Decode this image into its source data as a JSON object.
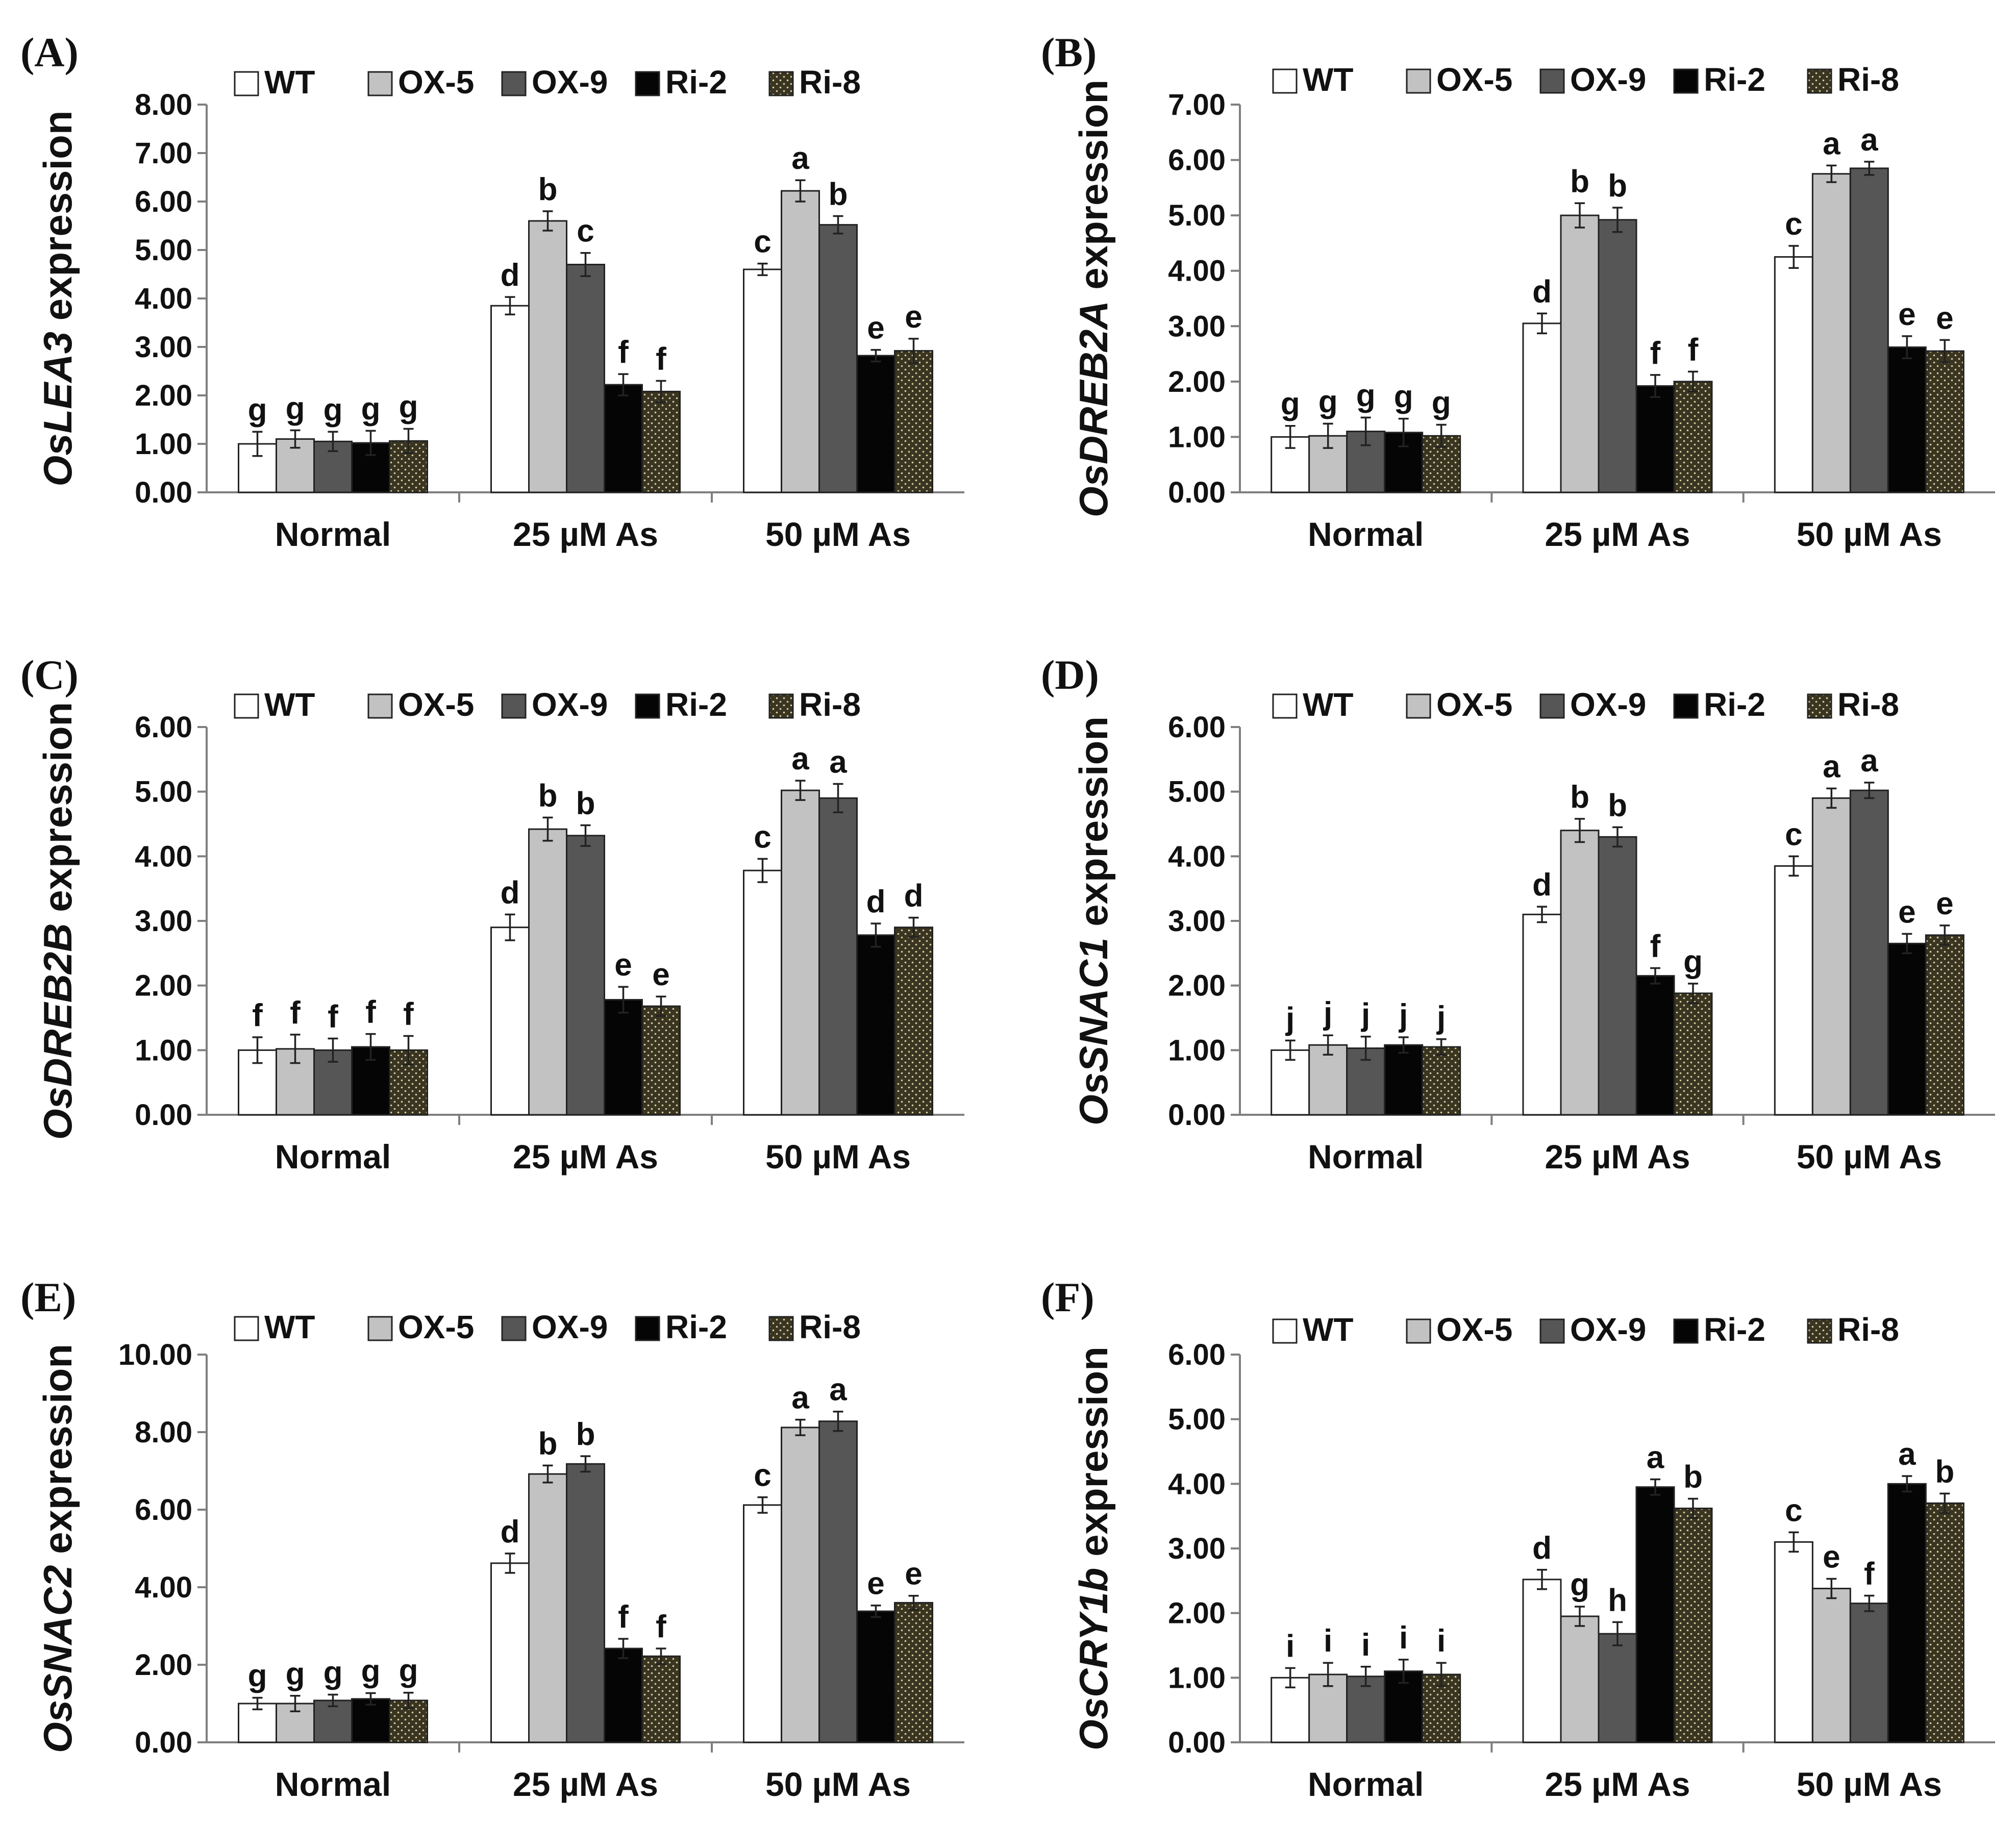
{
  "chart_data": [
    {
      "type": "bar",
      "panel": "(A)",
      "ylabel_gene": "OsLEA3",
      "ylabel_suffix": " expression",
      "ylabel": "OsLEA3 expression",
      "categories": [
        "Normal",
        "25 µM As",
        "50 µM As"
      ],
      "yticks": [
        "0.00",
        "1.00",
        "2.00",
        "3.00",
        "4.00",
        "5.00",
        "6.00",
        "7.00",
        "8.00"
      ],
      "ylim": [
        0,
        8
      ],
      "series": [
        {
          "name": "WT",
          "values": [
            1.0,
            3.85,
            4.6
          ],
          "errors": [
            0.25,
            0.18,
            0.12
          ],
          "letters": [
            "g",
            "d",
            "c"
          ]
        },
        {
          "name": "OX-5",
          "values": [
            1.1,
            5.6,
            6.22
          ],
          "errors": [
            0.18,
            0.2,
            0.22
          ],
          "letters": [
            "g",
            "b",
            "a"
          ]
        },
        {
          "name": "OX-9",
          "values": [
            1.05,
            4.7,
            5.52
          ],
          "errors": [
            0.2,
            0.24,
            0.18
          ],
          "letters": [
            "g",
            "c",
            "b"
          ]
        },
        {
          "name": "Ri-2",
          "values": [
            1.02,
            2.22,
            2.82
          ],
          "errors": [
            0.25,
            0.22,
            0.12
          ],
          "letters": [
            "g",
            "f",
            "e"
          ]
        },
        {
          "name": "Ri-8",
          "values": [
            1.06,
            2.08,
            2.92
          ],
          "errors": [
            0.25,
            0.22,
            0.25
          ],
          "letters": [
            "g",
            "f",
            "e"
          ]
        }
      ]
    },
    {
      "type": "bar",
      "panel": "(B)",
      "ylabel_gene": "OsDREB2A",
      "ylabel_suffix": " expression",
      "ylabel": "OsDREB2A expression",
      "categories": [
        "Normal",
        "25 µM As",
        "50 µM As"
      ],
      "yticks": [
        "0.00",
        "1.00",
        "2.00",
        "3.00",
        "4.00",
        "5.00",
        "6.00",
        "7.00"
      ],
      "ylim": [
        0,
        7
      ],
      "series": [
        {
          "name": "WT",
          "values": [
            1.0,
            3.05,
            4.25
          ],
          "errors": [
            0.2,
            0.18,
            0.2
          ],
          "letters": [
            "g",
            "d",
            "c"
          ]
        },
        {
          "name": "OX-5",
          "values": [
            1.02,
            5.0,
            5.75
          ],
          "errors": [
            0.22,
            0.22,
            0.15
          ],
          "letters": [
            "g",
            "b",
            "a"
          ]
        },
        {
          "name": "OX-9",
          "values": [
            1.1,
            4.92,
            5.85
          ],
          "errors": [
            0.25,
            0.22,
            0.12
          ],
          "letters": [
            "g",
            "b",
            "a"
          ]
        },
        {
          "name": "Ri-2",
          "values": [
            1.08,
            1.92,
            2.62
          ],
          "errors": [
            0.25,
            0.2,
            0.2
          ],
          "letters": [
            "g",
            "f",
            "e"
          ]
        },
        {
          "name": "Ri-8",
          "values": [
            1.02,
            2.0,
            2.55
          ],
          "errors": [
            0.2,
            0.18,
            0.2
          ],
          "letters": [
            "g",
            "f",
            "e"
          ]
        }
      ]
    },
    {
      "type": "bar",
      "panel": "(C)",
      "ylabel_gene": "OsDREB2B",
      "ylabel_suffix": " expression",
      "ylabel": "OsDREB2B expression",
      "categories": [
        "Normal",
        "25 µM As",
        "50 µM As"
      ],
      "yticks": [
        "0.00",
        "1.00",
        "2.00",
        "3.00",
        "4.00",
        "5.00",
        "6.00"
      ],
      "ylim": [
        0,
        6
      ],
      "series": [
        {
          "name": "WT",
          "values": [
            1.0,
            2.9,
            3.78
          ],
          "errors": [
            0.2,
            0.2,
            0.18
          ],
          "letters": [
            "f",
            "d",
            "c"
          ]
        },
        {
          "name": "OX-5",
          "values": [
            1.02,
            4.42,
            5.02
          ],
          "errors": [
            0.22,
            0.18,
            0.15
          ],
          "letters": [
            "f",
            "b",
            "a"
          ]
        },
        {
          "name": "OX-9",
          "values": [
            1.0,
            4.32,
            4.9
          ],
          "errors": [
            0.18,
            0.16,
            0.22
          ],
          "letters": [
            "f",
            "b",
            "a"
          ]
        },
        {
          "name": "Ri-2",
          "values": [
            1.05,
            1.78,
            2.78
          ],
          "errors": [
            0.2,
            0.2,
            0.18
          ],
          "letters": [
            "f",
            "e",
            "d"
          ]
        },
        {
          "name": "Ri-8",
          "values": [
            1.0,
            1.68,
            2.9
          ],
          "errors": [
            0.22,
            0.15,
            0.15
          ],
          "letters": [
            "f",
            "e",
            "d"
          ]
        }
      ]
    },
    {
      "type": "bar",
      "panel": "(D)",
      "ylabel_gene": "OsSNAC1",
      "ylabel_suffix": " expression",
      "ylabel": "OsSNAC1 expression",
      "categories": [
        "Normal",
        "25 µM As",
        "50 µM As"
      ],
      "yticks": [
        "0.00",
        "1.00",
        "2.00",
        "3.00",
        "4.00",
        "5.00",
        "6.00"
      ],
      "ylim": [
        0,
        6
      ],
      "series": [
        {
          "name": "WT",
          "values": [
            1.0,
            3.1,
            3.85
          ],
          "errors": [
            0.15,
            0.12,
            0.15
          ],
          "letters": [
            "j",
            "d",
            "c"
          ]
        },
        {
          "name": "OX-5",
          "values": [
            1.08,
            4.4,
            4.9
          ],
          "errors": [
            0.15,
            0.18,
            0.15
          ],
          "letters": [
            "j",
            "b",
            "a"
          ]
        },
        {
          "name": "OX-9",
          "values": [
            1.03,
            4.3,
            5.02
          ],
          "errors": [
            0.18,
            0.15,
            0.12
          ],
          "letters": [
            "j",
            "b",
            "a"
          ]
        },
        {
          "name": "Ri-2",
          "values": [
            1.08,
            2.15,
            2.65
          ],
          "errors": [
            0.12,
            0.12,
            0.15
          ],
          "letters": [
            "j",
            "f",
            "e"
          ]
        },
        {
          "name": "Ri-8",
          "values": [
            1.05,
            1.88,
            2.78
          ],
          "errors": [
            0.12,
            0.15,
            0.15
          ],
          "letters": [
            "j",
            "g",
            "e"
          ]
        }
      ]
    },
    {
      "type": "bar",
      "panel": "(E)",
      "ylabel_gene": "OsSNAC2",
      "ylabel_suffix": " expression",
      "ylabel": "OsSNAC2 expression",
      "categories": [
        "Normal",
        "25 µM As",
        "50 µM As"
      ],
      "yticks": [
        "0.00",
        "2.00",
        "4.00",
        "6.00",
        "8.00",
        "10.00"
      ],
      "ylim": [
        0,
        10
      ],
      "series": [
        {
          "name": "WT",
          "values": [
            1.0,
            4.62,
            6.12
          ],
          "errors": [
            0.15,
            0.25,
            0.2
          ],
          "letters": [
            "g",
            "d",
            "c"
          ]
        },
        {
          "name": "OX-5",
          "values": [
            1.0,
            6.92,
            8.12
          ],
          "errors": [
            0.2,
            0.22,
            0.2
          ],
          "letters": [
            "g",
            "b",
            "a"
          ]
        },
        {
          "name": "OX-9",
          "values": [
            1.08,
            7.18,
            8.28
          ],
          "errors": [
            0.15,
            0.2,
            0.25
          ],
          "letters": [
            "g",
            "b",
            "a"
          ]
        },
        {
          "name": "Ri-2",
          "values": [
            1.12,
            2.42,
            3.38
          ],
          "errors": [
            0.15,
            0.25,
            0.15
          ],
          "letters": [
            "g",
            "f",
            "e"
          ]
        },
        {
          "name": "Ri-8",
          "values": [
            1.08,
            2.22,
            3.6
          ],
          "errors": [
            0.2,
            0.2,
            0.18
          ],
          "letters": [
            "g",
            "f",
            "e"
          ]
        }
      ]
    },
    {
      "type": "bar",
      "panel": "(F)",
      "ylabel_gene": "OsCRY1b",
      "ylabel_suffix": " expression",
      "ylabel": "OsCRY1b expression",
      "categories": [
        "Normal",
        "25 µM As",
        "50 µM As"
      ],
      "yticks": [
        "0.00",
        "1.00",
        "2.00",
        "3.00",
        "4.00",
        "5.00",
        "6.00"
      ],
      "ylim": [
        0,
        6
      ],
      "series": [
        {
          "name": "WT",
          "values": [
            1.0,
            2.52,
            3.1
          ],
          "errors": [
            0.15,
            0.15,
            0.15
          ],
          "letters": [
            "i",
            "d",
            "c"
          ]
        },
        {
          "name": "OX-5",
          "values": [
            1.05,
            1.95,
            2.38
          ],
          "errors": [
            0.18,
            0.15,
            0.15
          ],
          "letters": [
            "i",
            "g",
            "e"
          ]
        },
        {
          "name": "OX-9",
          "values": [
            1.02,
            1.68,
            2.15
          ],
          "errors": [
            0.15,
            0.18,
            0.12
          ],
          "letters": [
            "i",
            "h",
            "f"
          ]
        },
        {
          "name": "Ri-2",
          "values": [
            1.1,
            3.95,
            4.0
          ],
          "errors": [
            0.18,
            0.12,
            0.12
          ],
          "letters": [
            "i",
            "a",
            "a"
          ]
        },
        {
          "name": "Ri-8",
          "values": [
            1.05,
            3.62,
            3.7
          ],
          "errors": [
            0.18,
            0.15,
            0.15
          ],
          "letters": [
            "i",
            "b",
            "b"
          ]
        }
      ]
    }
  ],
  "colors": {
    "WT": "#ffffff",
    "OX-5": "#c2c2c2",
    "OX-9": "#565656",
    "Ri-2": "#050505",
    "Ri-8": "#3a3522",
    "ri8_dot": "#d7cf9c",
    "axis": "#7f7f7f",
    "text": "#111111",
    "bar_stroke": "#222222"
  }
}
